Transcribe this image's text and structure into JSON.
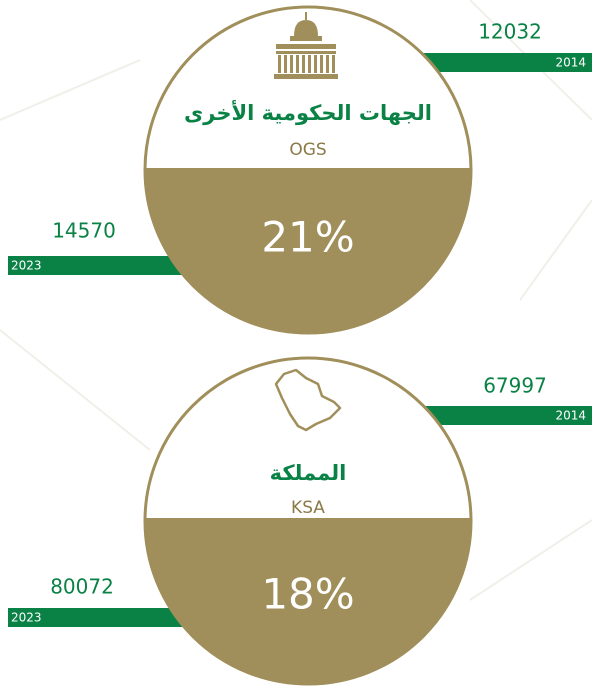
{
  "cards": [
    {
      "title_ar": "الجهات الحكومية الأخرى",
      "title_en": "OGS",
      "percent": "21%",
      "right": {
        "value": "12032",
        "year": "2014"
      },
      "left": {
        "value": "14570",
        "year": "2023"
      }
    },
    {
      "title_ar": "المملكة",
      "title_en": "KSA",
      "percent": "18%",
      "right": {
        "value": "67997",
        "year": "2014"
      },
      "left": {
        "value": "80072",
        "year": "2023"
      }
    }
  ]
}
